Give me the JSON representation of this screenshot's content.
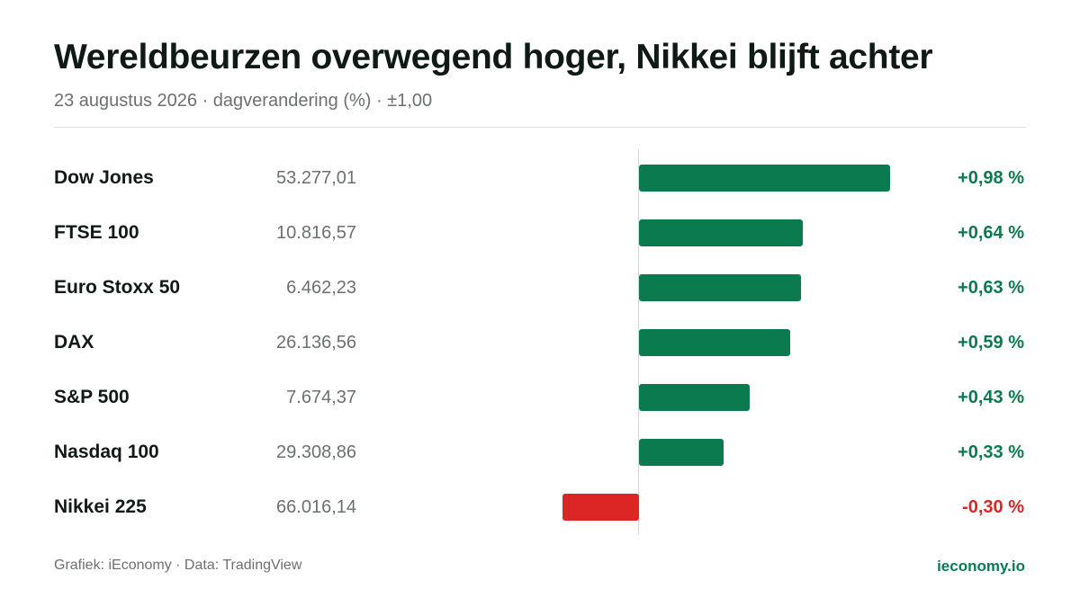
{
  "header": {
    "title": "Wereldbeurzen overwegend hoger, Nikkei blijft achter",
    "subtitle": "23 augustus 2026 · dagverandering (%) · ±1,00"
  },
  "footer": {
    "credit": "Grafiek: iEconomy · Data: TradingView",
    "brand": "ieconomy.io"
  },
  "colors": {
    "positive": "#0b7b4f",
    "negative": "#dc2626",
    "positive_text": "#0b7b4f",
    "negative_text": "#dc2626"
  },
  "chart_data": {
    "type": "bar",
    "orientation": "horizontal",
    "title": "Wereldbeurzen overwegend hoger, Nikkei blijft achter",
    "subtitle": "23 augustus 2026 · dagverandering (%) · ±1,00",
    "xlim": [
      -1.0,
      1.0
    ],
    "grid": false,
    "categories": [
      "Dow Jones",
      "FTSE 100",
      "Euro Stoxx 50",
      "DAX",
      "S&P 500",
      "Nasdaq 100",
      "Nikkei 225"
    ],
    "index_levels": [
      "53.277,01",
      "10.816,57",
      "6.462,23",
      "26.136,56",
      "7.674,37",
      "29.308,86",
      "66.016,14"
    ],
    "values": [
      0.98,
      0.64,
      0.63,
      0.59,
      0.43,
      0.33,
      -0.3
    ],
    "value_labels": [
      "+0,98 %",
      "+0,64 %",
      "+0,63 %",
      "+0,59 %",
      "+0,43 %",
      "+0,33 %",
      "-0,30 %"
    ]
  }
}
